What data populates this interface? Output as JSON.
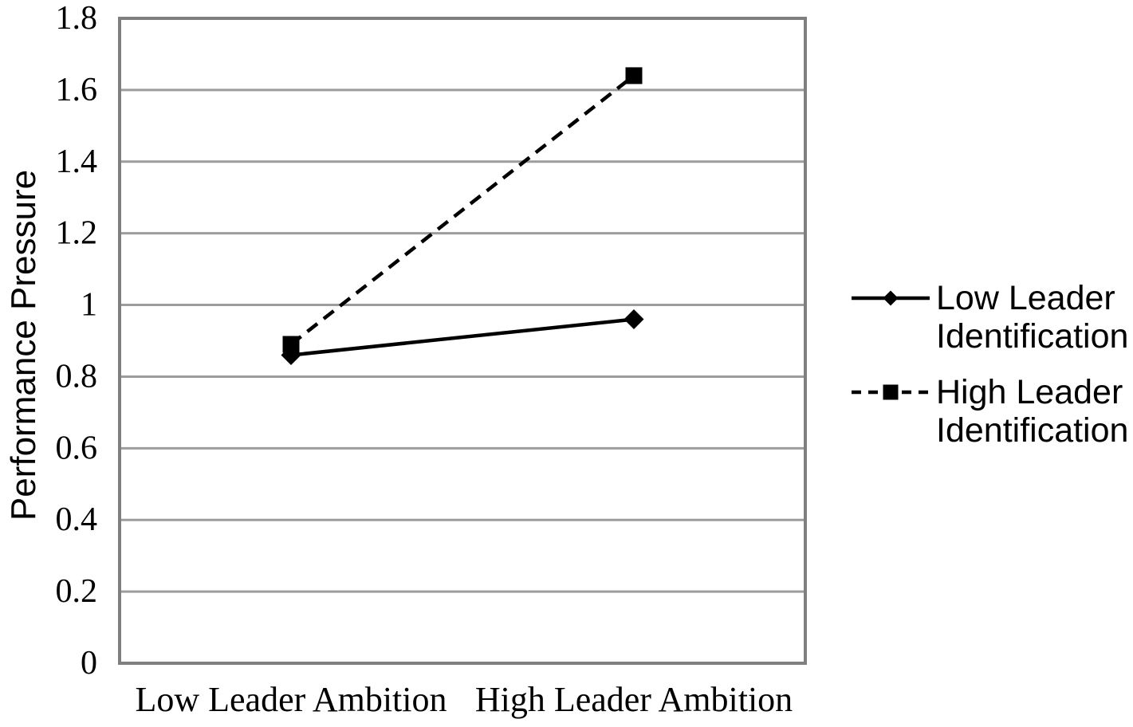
{
  "chart_data": {
    "type": "line",
    "title": "",
    "xlabel": "",
    "ylabel": "Performance Pressure",
    "categories": [
      "Low Leader Ambition",
      "High Leader Ambition"
    ],
    "series": [
      {
        "name": "Low Leader Identification",
        "values": [
          0.86,
          0.96
        ],
        "line_style": "solid",
        "marker": "diamond",
        "color": "#000000"
      },
      {
        "name": "High Leader Identification",
        "values": [
          0.89,
          1.64
        ],
        "line_style": "dashed",
        "marker": "square",
        "color": "#000000"
      }
    ],
    "ylim": [
      0,
      1.8
    ],
    "ytick_step": 0.2,
    "ytick_labels": [
      "0",
      "0.2",
      "0.4",
      "0.6",
      "0.8",
      "1",
      "1.2",
      "1.4",
      "1.6",
      "1.8"
    ],
    "grid": "horizontal",
    "legend_position": "right",
    "colors": {
      "series_line": "#000000",
      "gridline": "#9c9c9c",
      "plot_border": "#7f7f7f",
      "text": "#000000",
      "background": "#ffffff"
    }
  }
}
